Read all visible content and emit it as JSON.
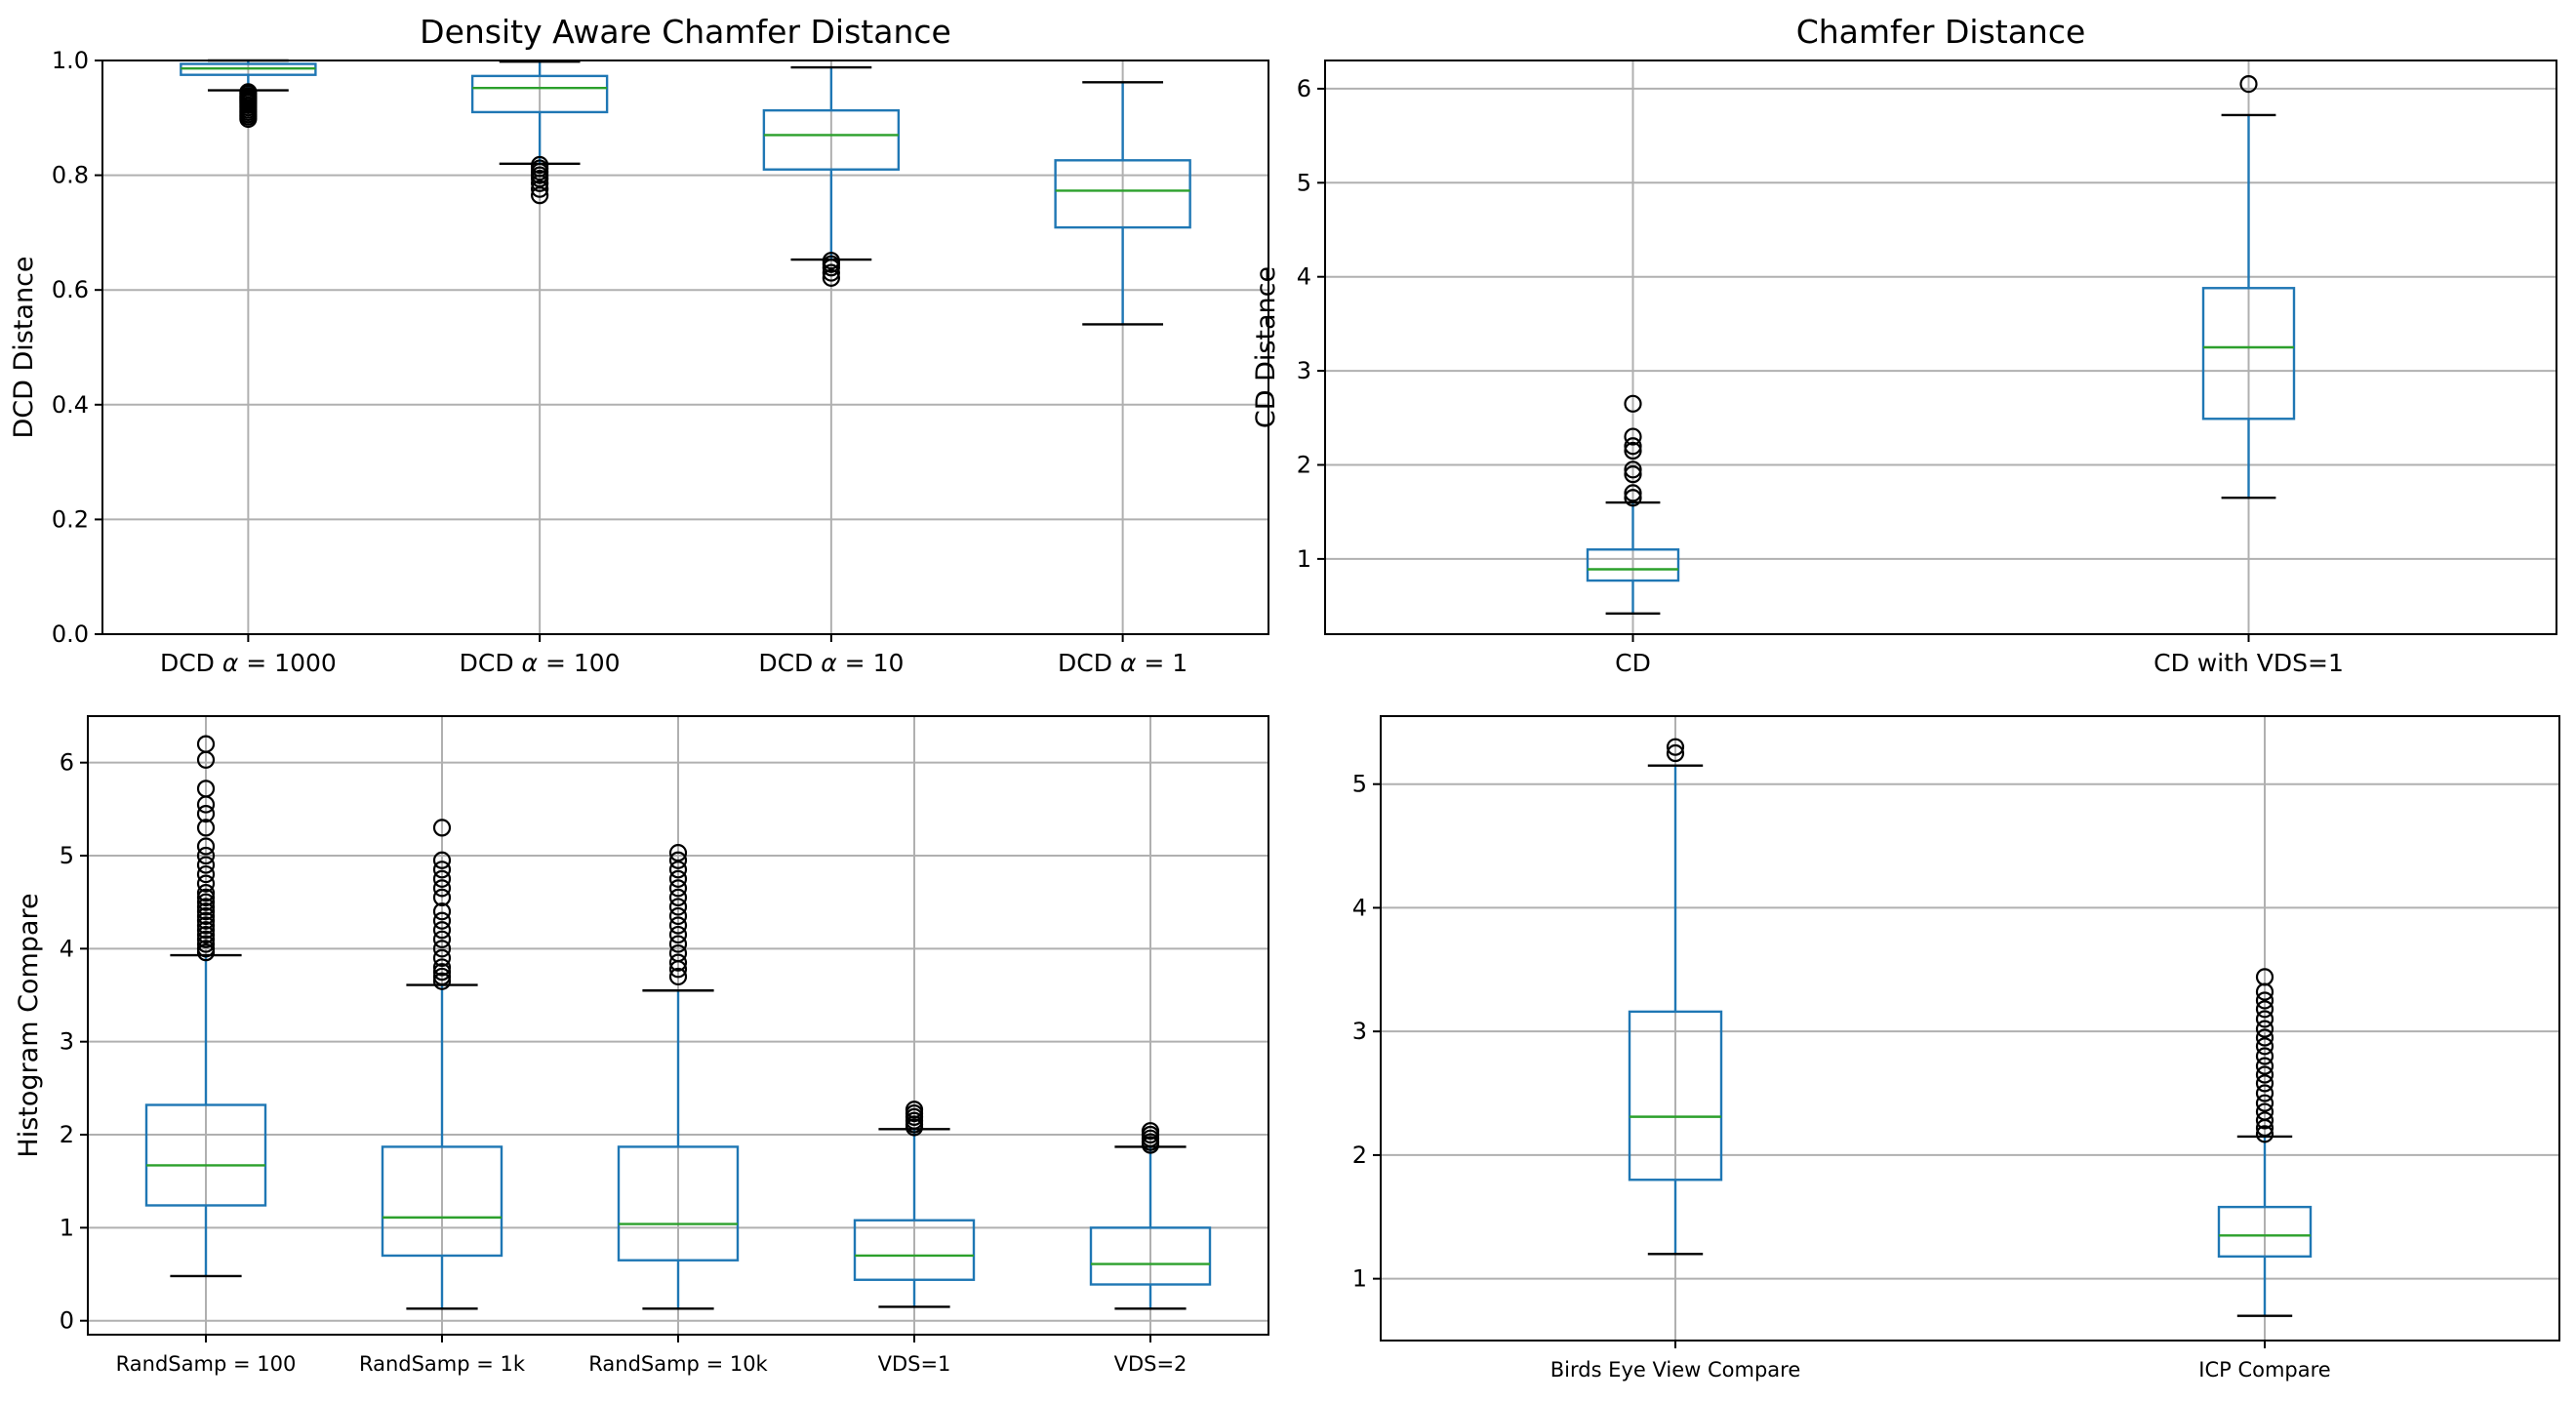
{
  "chart_data": [
    {
      "type": "box",
      "title": "Density Aware Chamfer Distance",
      "ylabel": "DCD Distance",
      "ylim": [
        0,
        1.0
      ],
      "yticks": [
        "0.0",
        "0.2",
        "0.4",
        "0.6",
        "0.8",
        "1.0"
      ],
      "categories": [
        {
          "prefix": "DCD ",
          "alpha": "α",
          "suffix": " = 1000",
          "q1": 0.975,
          "median": 0.986,
          "q3": 0.994,
          "whislo": 0.948,
          "whishi": 1.0,
          "fliers": [
            0.945,
            0.942,
            0.938,
            0.935,
            0.932,
            0.929,
            0.926,
            0.922,
            0.918,
            0.914,
            0.91,
            0.906,
            0.902,
            0.898
          ]
        },
        {
          "prefix": "DCD ",
          "alpha": "α",
          "suffix": " = 100",
          "q1": 0.91,
          "median": 0.952,
          "q3": 0.973,
          "whislo": 0.82,
          "whishi": 0.998,
          "fliers": [
            0.818,
            0.812,
            0.806,
            0.8,
            0.794,
            0.786,
            0.776,
            0.765
          ]
        },
        {
          "prefix": "DCD ",
          "alpha": "α",
          "suffix": " = 10",
          "q1": 0.81,
          "median": 0.87,
          "q3": 0.913,
          "whislo": 0.653,
          "whishi": 0.988,
          "fliers": [
            0.651,
            0.645,
            0.639,
            0.63,
            0.621
          ]
        },
        {
          "prefix": "DCD ",
          "alpha": "α",
          "suffix": " = 1",
          "q1": 0.709,
          "median": 0.773,
          "q3": 0.826,
          "whislo": 0.54,
          "whishi": 0.962,
          "fliers": []
        }
      ]
    },
    {
      "type": "box",
      "title": "Chamfer Distance",
      "ylabel": "CD Distance",
      "ylim": [
        0.2,
        6.3
      ],
      "yticks": [
        "1",
        "2",
        "3",
        "4",
        "5",
        "6"
      ],
      "categories": [
        {
          "label": "CD",
          "q1": 0.77,
          "median": 0.89,
          "q3": 1.1,
          "whislo": 0.42,
          "whishi": 1.6,
          "fliers": [
            1.65,
            1.7,
            1.9,
            1.95,
            2.15,
            2.2,
            2.3,
            2.65
          ]
        },
        {
          "label": "CD with VDS=1",
          "q1": 2.49,
          "median": 3.25,
          "q3": 3.88,
          "whislo": 1.65,
          "whishi": 5.72,
          "fliers": [
            6.05
          ]
        }
      ]
    },
    {
      "type": "box",
      "title": "",
      "ylabel": "Histogram Compare",
      "ylim": [
        -0.15,
        6.5
      ],
      "yticks": [
        "0",
        "1",
        "2",
        "3",
        "4",
        "5",
        "6"
      ],
      "categories": [
        {
          "label": "RandSamp = 100",
          "q1": 1.24,
          "median": 1.67,
          "q3": 2.32,
          "whislo": 0.48,
          "whishi": 3.93,
          "fliers": [
            3.96,
            4.0,
            4.05,
            4.1,
            4.15,
            4.2,
            4.25,
            4.3,
            4.35,
            4.4,
            4.45,
            4.5,
            4.55,
            4.6,
            4.7,
            4.8,
            4.9,
            5.0,
            5.1,
            5.3,
            5.45,
            5.55,
            5.72,
            6.03,
            6.2
          ]
        },
        {
          "label": "RandSamp  = 1k",
          "q1": 0.7,
          "median": 1.11,
          "q3": 1.87,
          "whislo": 0.13,
          "whishi": 3.61,
          "fliers": [
            3.65,
            3.7,
            3.75,
            3.8,
            3.9,
            4.0,
            4.1,
            4.2,
            4.3,
            4.4,
            4.55,
            4.65,
            4.75,
            4.85,
            4.95,
            5.3
          ]
        },
        {
          "label": "RandSamp  = 10k",
          "q1": 0.65,
          "median": 1.04,
          "q3": 1.87,
          "whislo": 0.13,
          "whishi": 3.55,
          "fliers": [
            3.7,
            3.78,
            3.85,
            3.95,
            4.05,
            4.15,
            4.25,
            4.35,
            4.45,
            4.55,
            4.65,
            4.75,
            4.85,
            4.95,
            5.03
          ]
        },
        {
          "label": "VDS=1",
          "q1": 0.44,
          "median": 0.7,
          "q3": 1.08,
          "whislo": 0.15,
          "whishi": 2.06,
          "fliers": [
            2.08,
            2.11,
            2.15,
            2.19,
            2.23,
            2.27
          ]
        },
        {
          "label": "VDS=2",
          "q1": 0.39,
          "median": 0.61,
          "q3": 1.0,
          "whislo": 0.13,
          "whishi": 1.87,
          "fliers": [
            1.89,
            1.92,
            1.96,
            2.0,
            2.04
          ]
        }
      ]
    },
    {
      "type": "box",
      "title": "",
      "ylabel": "",
      "ylim": [
        0.5,
        5.55
      ],
      "yticks": [
        "1",
        "2",
        "3",
        "4",
        "5"
      ],
      "categories": [
        {
          "label": "Birds Eye View Compare",
          "q1": 1.8,
          "median": 2.31,
          "q3": 3.16,
          "whislo": 1.2,
          "whishi": 5.15,
          "fliers": [
            5.25,
            5.3
          ]
        },
        {
          "label": "ICP Compare",
          "q1": 1.18,
          "median": 1.35,
          "q3": 1.58,
          "whislo": 0.7,
          "whishi": 2.15,
          "fliers": [
            2.17,
            2.22,
            2.28,
            2.35,
            2.42,
            2.5,
            2.58,
            2.65,
            2.72,
            2.8,
            2.88,
            2.95,
            3.02,
            3.1,
            3.18,
            3.25,
            3.32,
            3.44
          ]
        }
      ]
    }
  ]
}
